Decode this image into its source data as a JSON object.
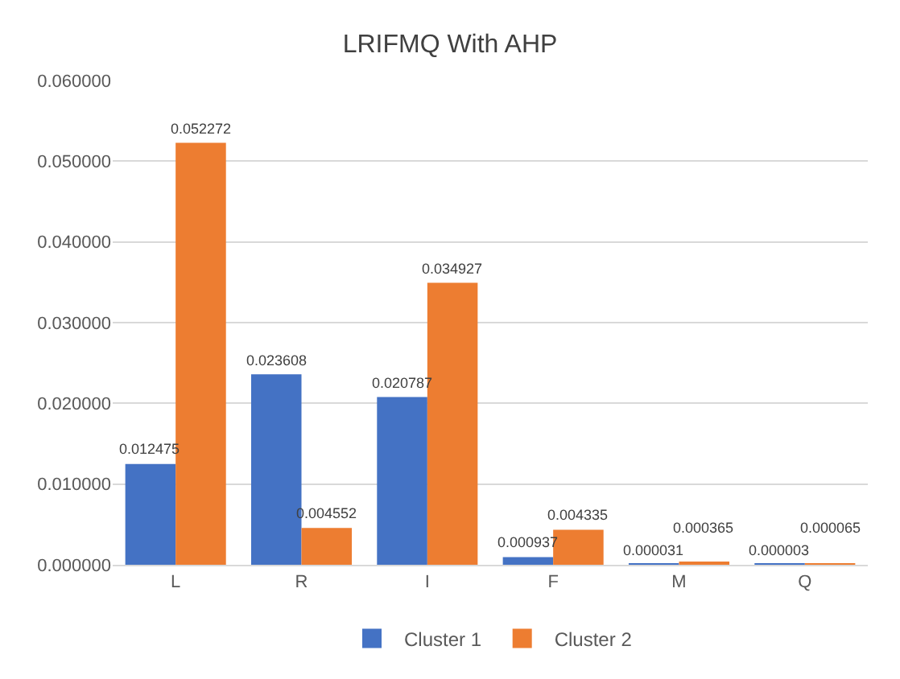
{
  "chart_data": {
    "type": "bar",
    "title": "LRIFMQ With AHP",
    "categories": [
      "L",
      "R",
      "I",
      "F",
      "M",
      "Q"
    ],
    "series": [
      {
        "name": "Cluster 1",
        "color": "#4472c4",
        "values": [
          0.012475,
          0.023608,
          0.020787,
          0.000937,
          3.1e-05,
          3e-06
        ],
        "value_labels": [
          "0.012475",
          "0.023608",
          "0.020787",
          "0.000937",
          "0.000031",
          "0.000003"
        ]
      },
      {
        "name": "Cluster 2",
        "color": "#ed7d31",
        "values": [
          0.052272,
          0.004552,
          0.034927,
          0.004335,
          0.000365,
          6.5e-05
        ],
        "value_labels": [
          "0.052272",
          "0.004552",
          "0.034927",
          "0.004335",
          "0.000365",
          "0.000065"
        ]
      }
    ],
    "ylim": [
      0,
      0.06
    ],
    "yticks": [
      {
        "value": 0,
        "label": "0.000000"
      },
      {
        "value": 0.01,
        "label": "0.010000"
      },
      {
        "value": 0.02,
        "label": "0.020000"
      },
      {
        "value": 0.03,
        "label": "0.030000"
      },
      {
        "value": 0.04,
        "label": "0.040000"
      },
      {
        "value": 0.05,
        "label": "0.050000"
      },
      {
        "value": 0.06,
        "label": "0.060000"
      }
    ],
    "grid": "y",
    "legend": "bottom"
  }
}
